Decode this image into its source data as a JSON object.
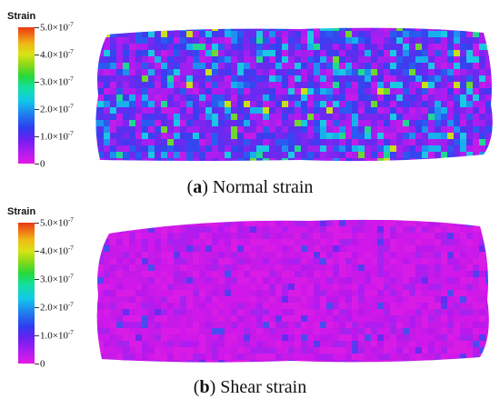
{
  "colorbar": {
    "title": "Strain",
    "ticks": [
      "5.0×10",
      "4.0×10",
      "3.0×10",
      "2.0×10",
      "1.0×10",
      "0"
    ],
    "tick_exponents": [
      "-7",
      "-7",
      "-7",
      "-7",
      "-7",
      ""
    ]
  },
  "panels": [
    {
      "letter": "a",
      "caption": "Normal strain"
    },
    {
      "letter": "b",
      "caption": "Shear strain"
    }
  ]
}
